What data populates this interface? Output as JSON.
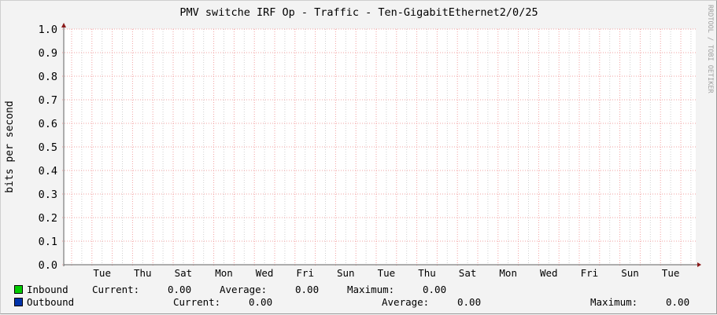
{
  "chart_data": {
    "type": "line",
    "title": "PMV switche IRF Op - Traffic - Ten-GigabitEthernet2/0/25",
    "ylabel": "bits per second",
    "xlabel": "",
    "ylim": [
      0,
      1.0
    ],
    "yticks": [
      "0.0",
      "0.1",
      "0.2",
      "0.3",
      "0.4",
      "0.5",
      "0.6",
      "0.7",
      "0.8",
      "0.9",
      "1.0"
    ],
    "xticks": [
      "Tue",
      "Thu",
      "Sat",
      "Mon",
      "Wed",
      "Fri",
      "Sun",
      "Tue",
      "Thu",
      "Sat",
      "Mon",
      "Wed",
      "Fri",
      "Sun",
      "Tue"
    ],
    "grid": true,
    "watermark": "RRDTOOL / TOBI OETIKER",
    "series": [
      {
        "name": "Inbound",
        "color": "#00cc00",
        "values": [
          0
        ],
        "current": "0.00",
        "average": "0.00",
        "maximum": "0.00"
      },
      {
        "name": "Outbound",
        "color": "#0033aa",
        "values": [
          0
        ],
        "current": "0.00",
        "average": "0.00",
        "maximum": "0.00"
      }
    ]
  },
  "legend": {
    "current_label": "Current:",
    "average_label": "Average:",
    "maximum_label": "Maximum:"
  }
}
